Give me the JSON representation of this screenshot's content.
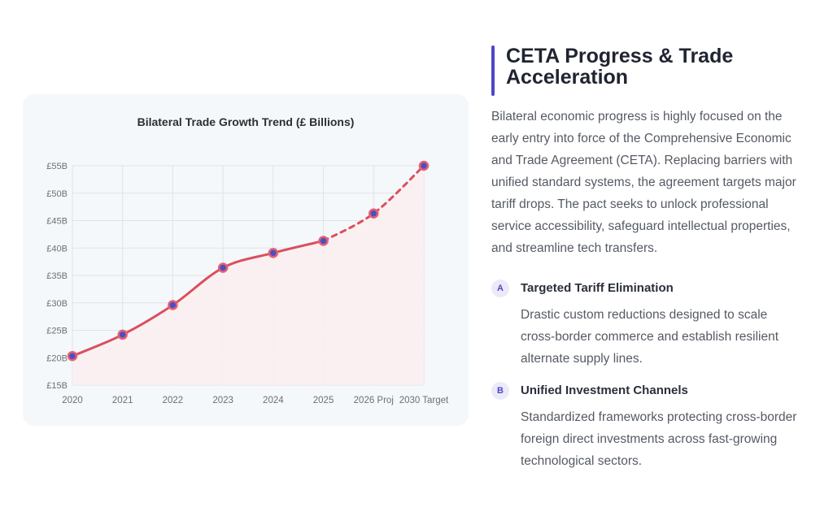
{
  "heading": "CETA Progress & Trade Acceleration",
  "intro": "Bilateral economic progress is highly focused on the early entry into force of the Comprehensive Economic and Trade Agreement (CETA). Replacing barriers with unified standard systems, the agreement targets major tariff drops. The pact seeks to unlock professional service accessibility, safeguard intellectual properties, and streamline tech transfers.",
  "features": [
    {
      "badge": "A",
      "title": "Targeted Tariff Elimination",
      "text": "Drastic custom reductions designed to scale cross-border commerce and establish resilient alternate supply lines."
    },
    {
      "badge": "B",
      "title": "Unified Investment Channels",
      "text": "Standardized frameworks protecting cross-border foreign direct investments across fast-growing technological sectors."
    }
  ],
  "chart_data": {
    "type": "line",
    "title": "Bilateral Trade Growth Trend (£ Billions)",
    "categories": [
      "2020",
      "2021",
      "2022",
      "2023",
      "2024",
      "2025",
      "2026 Proj",
      "2030 Target"
    ],
    "values": [
      20.3,
      24.2,
      29.6,
      36.4,
      39.1,
      41.3,
      46.3,
      55.0
    ],
    "projected_from_index": 5,
    "y_ticks": [
      "£15B",
      "£20B",
      "£25B",
      "£30B",
      "£35B",
      "£40B",
      "£45B",
      "£50B",
      "£55B"
    ],
    "ylim": [
      15,
      55
    ],
    "grid": true,
    "colors": {
      "line": "#d9505f",
      "marker_fill": "#4b4fc4",
      "marker_stroke": "#e86070",
      "area": "#fbeef0",
      "grid": "#dfe2e8"
    }
  }
}
